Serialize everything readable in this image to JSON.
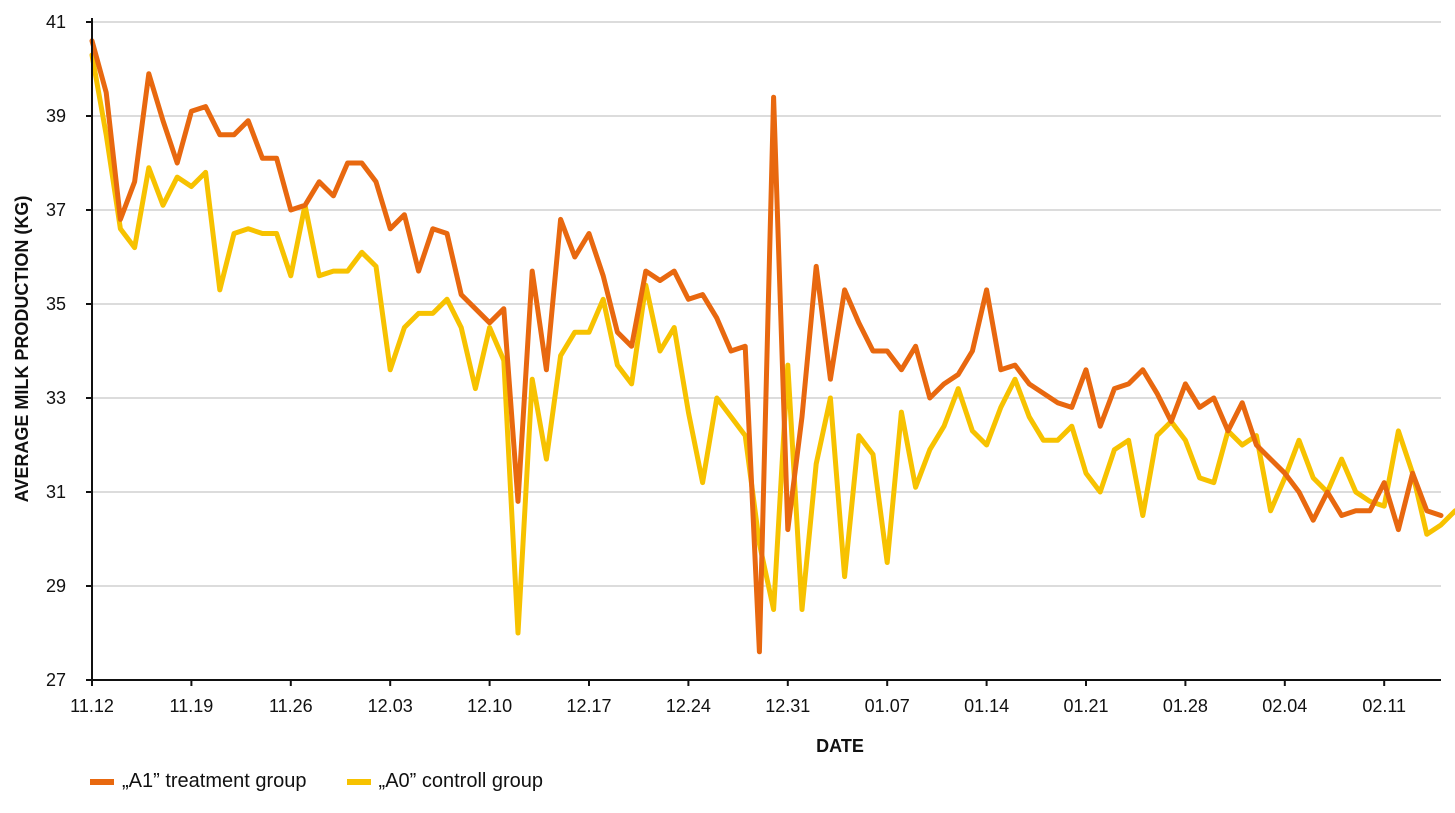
{
  "chart_data": {
    "type": "line",
    "title": "",
    "xlabel": "DATE",
    "ylabel": "AVERAGE MILK PRODUCTION (KG)",
    "ylim": [
      27,
      41
    ],
    "yticks": [
      27,
      29,
      31,
      33,
      35,
      37,
      39,
      41
    ],
    "xtick_labels": [
      "11.12",
      "11.19",
      "11.26",
      "12.03",
      "12.10",
      "12.17",
      "12.24",
      "12.31",
      "01.07",
      "01.14",
      "01.21",
      "01.28",
      "02.04",
      "02.11"
    ],
    "grid": "horizontal",
    "legend_position": "bottom-left",
    "series": [
      {
        "name": "„A1” treatment group",
        "color": "#e8680f",
        "values": [
          40.6,
          39.5,
          36.8,
          37.6,
          39.9,
          38.9,
          38.0,
          39.1,
          39.2,
          38.6,
          38.6,
          38.9,
          38.1,
          38.1,
          37.0,
          37.1,
          37.6,
          37.3,
          38.0,
          38.0,
          37.6,
          36.6,
          36.9,
          35.7,
          36.6,
          36.5,
          35.2,
          34.9,
          34.6,
          34.9,
          30.8,
          35.7,
          33.6,
          36.8,
          36.0,
          36.5,
          35.6,
          34.4,
          34.1,
          35.7,
          35.5,
          35.7,
          35.1,
          35.2,
          34.7,
          34.0,
          34.1,
          27.6,
          39.4,
          30.2,
          32.6,
          35.8,
          33.4,
          35.3,
          34.6,
          34.0,
          34.0,
          33.6,
          34.1,
          33.0,
          33.3,
          33.5,
          34.0,
          35.3,
          33.6,
          33.7,
          33.3,
          33.1,
          32.9,
          32.8,
          33.6,
          32.4,
          33.2,
          33.3,
          33.6,
          33.1,
          32.5,
          33.3,
          32.8,
          33.0,
          32.3,
          32.9,
          32.0,
          31.7,
          31.4,
          31.0,
          30.4,
          31.0,
          30.5,
          30.6,
          30.6,
          31.2,
          30.2,
          31.4,
          30.6,
          30.5
        ]
      },
      {
        "name": "„A0” controll group",
        "color": "#f7c200",
        "values": [
          40.3,
          38.6,
          36.6,
          36.2,
          37.9,
          37.1,
          37.7,
          37.5,
          37.8,
          35.3,
          36.5,
          36.6,
          36.5,
          36.5,
          35.6,
          37.1,
          35.6,
          35.7,
          35.7,
          36.1,
          35.8,
          33.6,
          34.5,
          34.8,
          34.8,
          35.1,
          34.5,
          33.2,
          34.5,
          33.8,
          28.0,
          33.4,
          31.7,
          33.9,
          34.4,
          34.4,
          35.1,
          33.7,
          33.3,
          35.4,
          34.0,
          34.5,
          32.7,
          31.2,
          33.0,
          32.6,
          32.2,
          29.9,
          28.5,
          33.7,
          28.5,
          31.6,
          33.0,
          29.2,
          32.2,
          31.8,
          29.5,
          32.7,
          31.1,
          31.9,
          32.4,
          33.2,
          32.3,
          32.0,
          32.8,
          33.4,
          32.6,
          32.1,
          32.1,
          32.4,
          31.4,
          31.0,
          31.9,
          32.1,
          30.5,
          32.2,
          32.5,
          32.1,
          31.3,
          31.2,
          32.3,
          32.0,
          32.2,
          30.6,
          31.3,
          32.1,
          31.3,
          31.0,
          31.7,
          31.0,
          30.8,
          30.7,
          32.3,
          31.4,
          30.1,
          30.3,
          30.6
        ]
      }
    ]
  }
}
